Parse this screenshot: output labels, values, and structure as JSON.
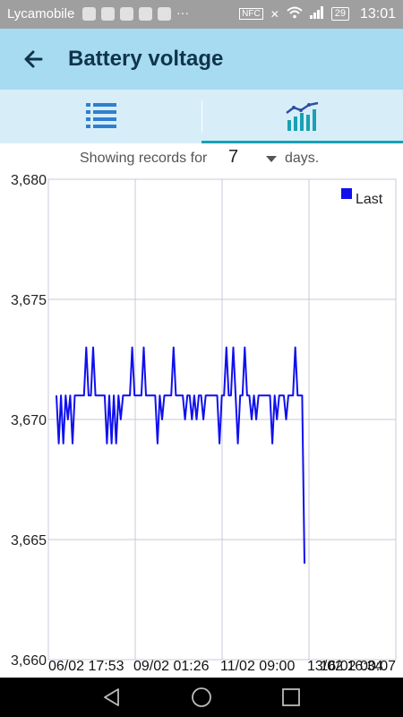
{
  "status_bar": {
    "carrier": "Lycamobile",
    "time": "13:01",
    "nfc": "NFC",
    "battery": "29"
  },
  "app_bar": {
    "title": "Battery voltage"
  },
  "tabs": [
    {
      "icon": "list-icon",
      "selected": false
    },
    {
      "icon": "chart-icon",
      "selected": true
    }
  ],
  "filter": {
    "prefix": "Showing records for",
    "days_value": "7",
    "suffix": "days."
  },
  "colors": {
    "accent": "#1aa0b4",
    "series": "#1010ee",
    "appbar": "#a6dbf1",
    "tabs": "#d7eef9"
  },
  "chart_data": {
    "type": "line",
    "title": "",
    "ylim": [
      3.66,
      3.68
    ],
    "y_ticks": [
      "3,680",
      "3,675",
      "3,670",
      "3,665",
      "3,660"
    ],
    "x_ticks": [
      "06/02 17:53",
      "09/02 01:26",
      "11/02 09:00",
      "13/02 16:34",
      "16/02 00:07"
    ],
    "grid": true,
    "legend": "top-right",
    "series": [
      {
        "name": "Last",
        "values": [
          3.671,
          3.669,
          3.671,
          3.669,
          3.671,
          3.67,
          3.671,
          3.669,
          3.671,
          3.671,
          3.671,
          3.671,
          3.671,
          3.673,
          3.671,
          3.671,
          3.673,
          3.671,
          3.671,
          3.671,
          3.671,
          3.671,
          3.669,
          3.671,
          3.669,
          3.671,
          3.669,
          3.671,
          3.67,
          3.671,
          3.671,
          3.671,
          3.671,
          3.673,
          3.671,
          3.671,
          3.671,
          3.671,
          3.673,
          3.671,
          3.671,
          3.671,
          3.671,
          3.671,
          3.669,
          3.671,
          3.67,
          3.671,
          3.671,
          3.671,
          3.671,
          3.673,
          3.671,
          3.671,
          3.671,
          3.671,
          3.67,
          3.671,
          3.671,
          3.67,
          3.671,
          3.67,
          3.671,
          3.671,
          3.67,
          3.671,
          3.671,
          3.671,
          3.671,
          3.671,
          3.671,
          3.669,
          3.671,
          3.671,
          3.673,
          3.671,
          3.671,
          3.673,
          3.671,
          3.669,
          3.671,
          3.671,
          3.673,
          3.671,
          3.671,
          3.67,
          3.671,
          3.67,
          3.671,
          3.671,
          3.671,
          3.671,
          3.671,
          3.671,
          3.669,
          3.671,
          3.67,
          3.671,
          3.671,
          3.671,
          3.67,
          3.671,
          3.671,
          3.671,
          3.673,
          3.671,
          3.671,
          3.671,
          3.664
        ]
      }
    ]
  }
}
